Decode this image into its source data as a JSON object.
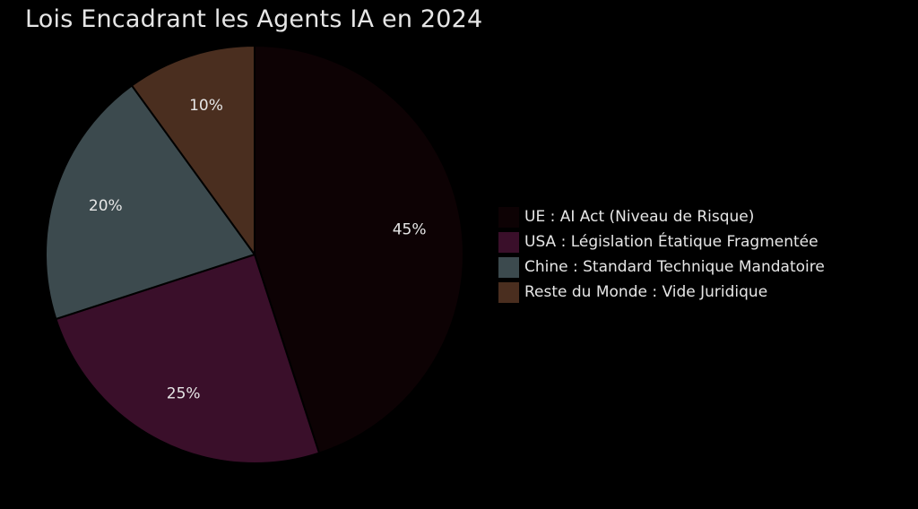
{
  "chart_data": {
    "type": "pie",
    "title": "Lois Encadrant les Agents IA en 2024",
    "categories": [
      "UE : AI Act (Niveau de Risque)",
      "USA : Législation Étatique Fragmentée",
      "Chine : Standard Technique Mandatoire",
      "Reste du Monde : Vide Juridique"
    ],
    "values": [
      45,
      25,
      20,
      10
    ],
    "labels": [
      "45%",
      "25%",
      "20%",
      "10%"
    ],
    "colors": [
      "#0d0204",
      "#3a0f2a",
      "#3c4a4e",
      "#4a2e1f"
    ],
    "legend_position": "right",
    "start_angle": "top, clockwise"
  }
}
